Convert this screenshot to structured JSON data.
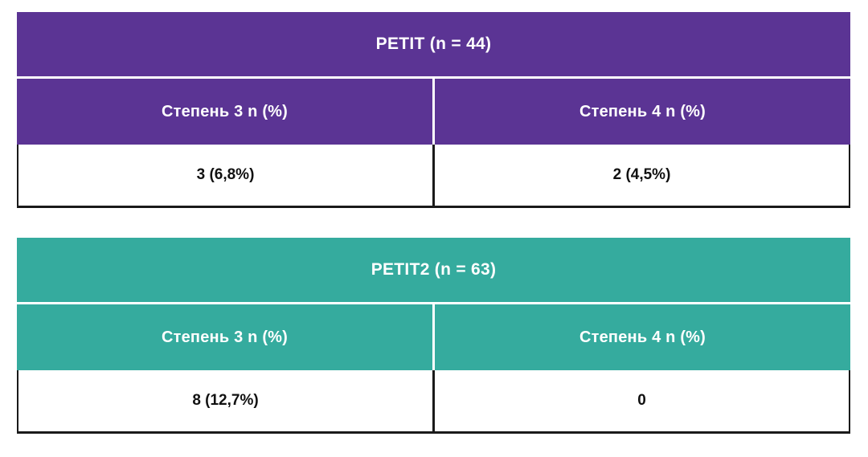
{
  "page": {
    "background": "#ffffff",
    "border_color": "#1a1a1a",
    "data_text_color": "#111111"
  },
  "tables": [
    {
      "name": "PETIT",
      "accent_color": "#5b3494",
      "header_text_color": "#ffffff",
      "title": "PETIT (n = 44)",
      "columns": [
        "Степень 3 n (%)",
        "Степень 4 n (%)"
      ],
      "values": [
        "3 (6,8%)",
        "2 (4,5%)"
      ]
    },
    {
      "name": "PETIT2",
      "accent_color": "#35ab9e",
      "header_text_color": "#ffffff",
      "title": "PETIT2 (n = 63)",
      "columns": [
        "Степень 3 n (%)",
        "Степень 4 n (%)"
      ],
      "values": [
        "8 (12,7%)",
        "0"
      ]
    }
  ],
  "chart_data": [
    {
      "type": "table",
      "title": "PETIT (n = 44)",
      "columns": [
        "Степень 3 n (%)",
        "Степень 4 n (%)"
      ],
      "rows": [
        [
          "3 (6,8%)",
          "2 (4,5%)"
        ]
      ],
      "accent_color": "#5b3494"
    },
    {
      "type": "table",
      "title": "PETIT2 (n = 63)",
      "columns": [
        "Степень 3 n (%)",
        "Степень 4 n (%)"
      ],
      "rows": [
        [
          "8 (12,7%)",
          "0"
        ]
      ],
      "accent_color": "#35ab9e"
    }
  ]
}
